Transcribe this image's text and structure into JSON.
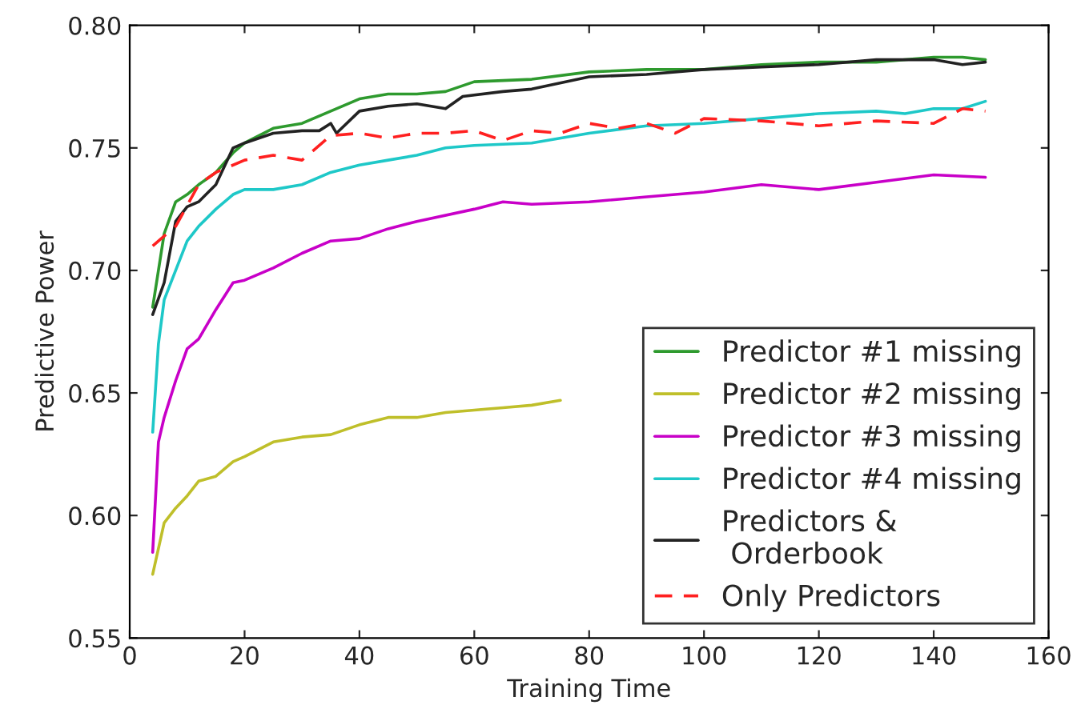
{
  "chart_data": {
    "type": "line",
    "xlabel": "Training Time",
    "ylabel": "Predictive Power",
    "xlim": [
      0,
      160
    ],
    "xticks": [
      0,
      20,
      40,
      60,
      80,
      100,
      120,
      140,
      160
    ],
    "ylim": [
      0.55,
      0.8
    ],
    "yticks": [
      {
        "value": 0.55,
        "label": "0.55"
      },
      {
        "value": 0.6,
        "label": "0.60"
      },
      {
        "value": 0.65,
        "label": "0.65"
      },
      {
        "value": 0.7,
        "label": "0.70"
      },
      {
        "value": 0.75,
        "label": "0.75"
      },
      {
        "value": 0.8,
        "label": "0.80"
      }
    ],
    "grid": false,
    "legend": "bottom right",
    "marker": "none",
    "series": [
      {
        "name": "Predictor #1 missing",
        "color": "#2e9a2e",
        "line_style": "solid",
        "x": [
          4,
          6,
          8,
          10,
          12,
          15,
          18,
          20,
          25,
          30,
          35,
          40,
          45,
          50,
          55,
          60,
          70,
          80,
          90,
          100,
          110,
          120,
          130,
          140,
          145,
          149
        ],
        "values": [
          0.685,
          0.715,
          0.728,
          0.731,
          0.735,
          0.74,
          0.748,
          0.752,
          0.758,
          0.76,
          0.765,
          0.77,
          0.772,
          0.772,
          0.773,
          0.777,
          0.778,
          0.781,
          0.782,
          0.782,
          0.784,
          0.785,
          0.785,
          0.787,
          0.787,
          0.786
        ]
      },
      {
        "name": "Predictor #2 missing",
        "color": "#bfbf2a",
        "line_style": "solid",
        "x": [
          4,
          6,
          8,
          10,
          12,
          15,
          18,
          20,
          25,
          30,
          35,
          40,
          45,
          50,
          55,
          60,
          65,
          70,
          75
        ],
        "values": [
          0.576,
          0.597,
          0.603,
          0.608,
          0.614,
          0.616,
          0.622,
          0.624,
          0.63,
          0.632,
          0.633,
          0.637,
          0.64,
          0.64,
          0.642,
          0.643,
          0.644,
          0.645,
          0.647
        ]
      },
      {
        "name": "Predictor #3 missing",
        "color": "#c800c8",
        "line_style": "solid",
        "x": [
          4,
          5,
          6,
          8,
          10,
          12,
          15,
          18,
          20,
          25,
          30,
          35,
          40,
          45,
          50,
          60,
          65,
          70,
          80,
          90,
          100,
          110,
          120,
          130,
          140,
          149
        ],
        "values": [
          0.585,
          0.63,
          0.64,
          0.655,
          0.668,
          0.672,
          0.684,
          0.695,
          0.696,
          0.701,
          0.707,
          0.712,
          0.713,
          0.717,
          0.72,
          0.725,
          0.728,
          0.727,
          0.728,
          0.73,
          0.732,
          0.735,
          0.733,
          0.736,
          0.739,
          0.738
        ]
      },
      {
        "name": "Predictor #4 missing",
        "color": "#1ec8c8",
        "line_style": "solid",
        "x": [
          4,
          5,
          6,
          8,
          10,
          12,
          15,
          18,
          20,
          25,
          30,
          35,
          40,
          45,
          50,
          55,
          60,
          70,
          80,
          90,
          100,
          110,
          120,
          130,
          135,
          140,
          145,
          149
        ],
        "values": [
          0.634,
          0.67,
          0.688,
          0.7,
          0.712,
          0.718,
          0.725,
          0.731,
          0.733,
          0.733,
          0.735,
          0.74,
          0.743,
          0.745,
          0.747,
          0.75,
          0.751,
          0.752,
          0.756,
          0.759,
          0.76,
          0.762,
          0.764,
          0.765,
          0.764,
          0.766,
          0.766,
          0.769
        ]
      },
      {
        "name": "Predictors &\n Orderbook",
        "color": "#222222",
        "line_style": "solid",
        "x": [
          4,
          6,
          8,
          10,
          12,
          15,
          18,
          20,
          25,
          30,
          33,
          35,
          36,
          40,
          45,
          50,
          55,
          58,
          65,
          70,
          80,
          90,
          100,
          110,
          120,
          130,
          140,
          145,
          149
        ],
        "values": [
          0.682,
          0.695,
          0.72,
          0.726,
          0.728,
          0.735,
          0.75,
          0.752,
          0.756,
          0.757,
          0.757,
          0.76,
          0.756,
          0.765,
          0.767,
          0.768,
          0.766,
          0.771,
          0.773,
          0.774,
          0.779,
          0.78,
          0.782,
          0.783,
          0.784,
          0.786,
          0.786,
          0.784,
          0.785
        ]
      },
      {
        "name": "Only Predictors",
        "color": "#ff2020",
        "line_style": "dashed",
        "x": [
          4,
          8,
          12,
          15,
          20,
          25,
          30,
          35,
          40,
          45,
          50,
          55,
          60,
          65,
          70,
          75,
          80,
          85,
          90,
          95,
          100,
          110,
          120,
          130,
          140,
          145,
          149
        ],
        "values": [
          0.71,
          0.718,
          0.735,
          0.74,
          0.745,
          0.747,
          0.745,
          0.755,
          0.756,
          0.754,
          0.756,
          0.756,
          0.757,
          0.753,
          0.757,
          0.756,
          0.76,
          0.758,
          0.76,
          0.756,
          0.762,
          0.761,
          0.759,
          0.761,
          0.76,
          0.766,
          0.765
        ]
      }
    ]
  }
}
